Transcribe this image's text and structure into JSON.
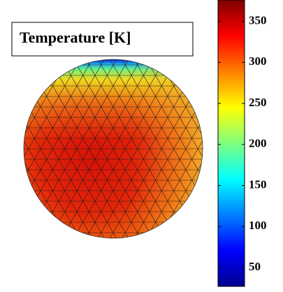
{
  "chart_data": {
    "type": "colormap-sphere",
    "title": "Temperature [K]",
    "colormap": "jet",
    "clim": [
      27,
      376
    ],
    "cticks": [
      50,
      100,
      150,
      200,
      250,
      300,
      350
    ]
  }
}
